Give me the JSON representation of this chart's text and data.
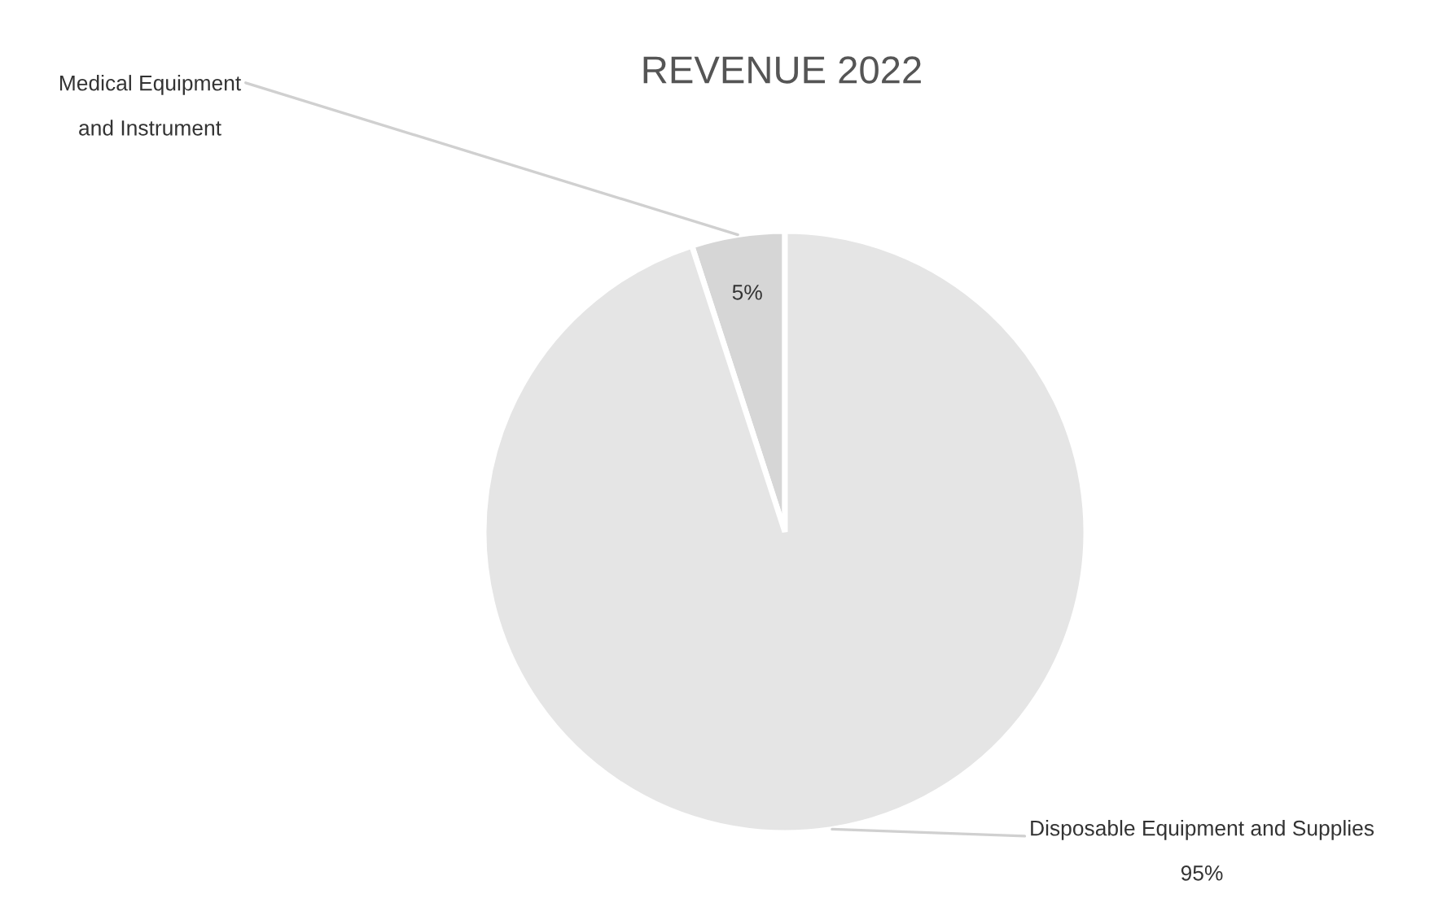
{
  "chart_data": {
    "type": "pie",
    "title": "REVENUE 2022",
    "categories": [
      "Medical Equipment\nand Instrument",
      "Disposable Equipment and Supplies"
    ],
    "values": [
      5,
      95
    ],
    "value_labels": [
      "5%",
      "95%"
    ],
    "colors": [
      "#d6d6d6",
      "#e5e5e5"
    ]
  }
}
